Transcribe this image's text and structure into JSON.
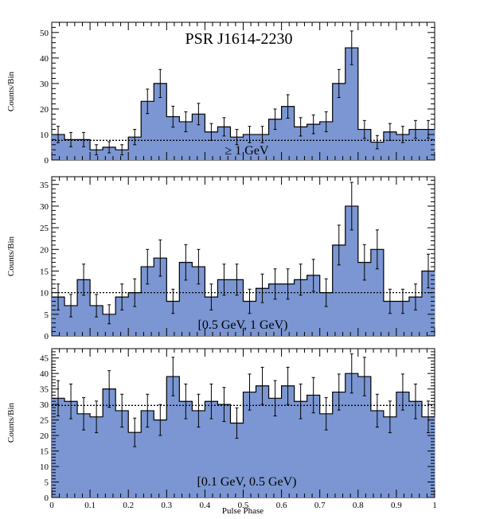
{
  "figure_title": "PSR J1614-2230",
  "colors": {
    "fill": "#7b96d2",
    "line": "#000000",
    "background": "#ffffff"
  },
  "chart_data": [
    {
      "type": "bar",
      "style": "histogram-with-errorbars",
      "annotation": "≥ 1 GeV",
      "ylabel": "Counts/Bin",
      "xlabel": "",
      "xlim": [
        0,
        1
      ],
      "ylim": [
        0,
        54
      ],
      "yticks": [
        0,
        10,
        20,
        30,
        40,
        50
      ],
      "xticks": [
        0,
        0.1,
        0.2,
        0.3,
        0.4,
        0.5,
        0.6,
        0.7,
        0.8,
        0.9,
        1
      ],
      "xticklabels": [
        "",
        "",
        "",
        "",
        "",
        "",
        "",
        "",
        "",
        "",
        ""
      ],
      "background_level": 7.7,
      "bin_width": 0.0333,
      "values": [
        10,
        8,
        8,
        4,
        5,
        4,
        9,
        23,
        30,
        17,
        15,
        18,
        11,
        13,
        9,
        10,
        10,
        16,
        21,
        13,
        14,
        15,
        30,
        44,
        12,
        7,
        11,
        10,
        12,
        12
      ],
      "errors": [
        3.2,
        2.8,
        2.8,
        2.0,
        2.2,
        2.0,
        3.0,
        4.8,
        5.5,
        4.1,
        3.9,
        4.2,
        3.3,
        3.6,
        3.0,
        3.2,
        3.2,
        4.0,
        4.6,
        3.6,
        3.7,
        3.9,
        5.5,
        6.6,
        3.5,
        2.6,
        3.3,
        3.2,
        3.5,
        3.5
      ]
    },
    {
      "type": "bar",
      "style": "histogram-with-errorbars",
      "annotation": "[0.5 GeV, 1 GeV)",
      "ylabel": "Counts/Bin",
      "xlabel": "",
      "xlim": [
        0,
        1
      ],
      "ylim": [
        0,
        36.8
      ],
      "yticks": [
        0,
        5,
        10,
        15,
        20,
        25,
        30,
        35
      ],
      "xticks": [
        0,
        0.1,
        0.2,
        0.3,
        0.4,
        0.5,
        0.6,
        0.7,
        0.8,
        0.9,
        1
      ],
      "xticklabels": [
        "",
        "",
        "",
        "",
        "",
        "",
        "",
        "",
        "",
        "",
        ""
      ],
      "background_level": 10,
      "bin_width": 0.0333,
      "values": [
        9,
        7,
        13,
        7,
        5,
        9,
        10,
        16,
        18,
        8,
        17,
        16,
        9,
        13,
        13,
        8,
        11,
        12,
        12,
        13,
        14,
        10,
        21,
        30,
        17,
        20,
        8,
        8,
        9,
        15
      ],
      "errors": [
        3.0,
        2.6,
        3.6,
        2.6,
        2.2,
        3.0,
        3.2,
        4.0,
        4.2,
        2.8,
        4.1,
        4.0,
        3.0,
        3.6,
        3.6,
        2.8,
        3.3,
        3.5,
        3.5,
        3.6,
        3.7,
        3.2,
        4.6,
        5.5,
        4.1,
        4.5,
        2.8,
        2.8,
        3.0,
        3.9
      ]
    },
    {
      "type": "bar",
      "style": "histogram-with-errorbars",
      "annotation": "[0.1 GeV, 0.5 GeV)",
      "ylabel": "Counts/Bin",
      "xlabel": "Pulse Phase",
      "xlim": [
        0,
        1
      ],
      "ylim": [
        0,
        48
      ],
      "yticks": [
        0,
        5,
        10,
        15,
        20,
        25,
        30,
        35,
        40,
        45
      ],
      "xticks": [
        0,
        0.1,
        0.2,
        0.3,
        0.4,
        0.5,
        0.6,
        0.7,
        0.8,
        0.9,
        1
      ],
      "xticklabels": [
        "0",
        "0.1",
        "0.2",
        "0.3",
        "0.4",
        "0.5",
        "0.6",
        "0.7",
        "0.8",
        "0.9",
        "1"
      ],
      "background_level": 29.7,
      "bin_width": 0.0333,
      "values": [
        32,
        31,
        27,
        26,
        35,
        28,
        21,
        28,
        25,
        39,
        31,
        28,
        31,
        30,
        24,
        34,
        36,
        32,
        36,
        31,
        33,
        27,
        34,
        40,
        39,
        28,
        26,
        34,
        31,
        26
      ],
      "errors": [
        5.7,
        5.6,
        5.2,
        5.1,
        5.9,
        5.3,
        4.6,
        5.3,
        5.0,
        6.2,
        5.6,
        5.3,
        5.6,
        5.5,
        4.9,
        5.8,
        6.0,
        5.7,
        6.0,
        5.6,
        5.7,
        5.2,
        5.8,
        6.3,
        6.2,
        5.3,
        5.1,
        5.8,
        5.6,
        5.1
      ]
    }
  ]
}
